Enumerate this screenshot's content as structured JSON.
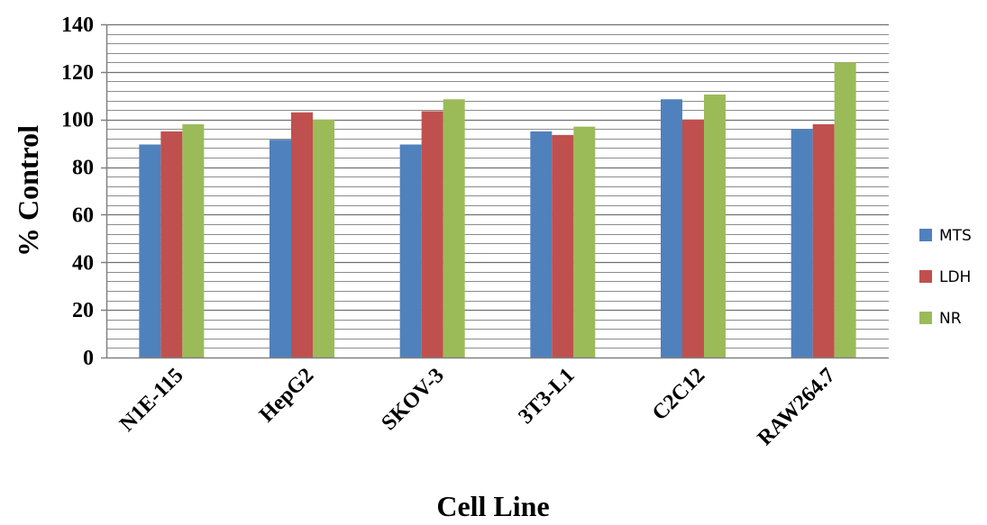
{
  "chart_data": {
    "type": "bar",
    "title": "",
    "xlabel": "Cell Line",
    "ylabel": "% Control",
    "ylim": [
      0,
      140
    ],
    "y_ticks": [
      0,
      20,
      40,
      60,
      80,
      100,
      120,
      140
    ],
    "y_minor_step": 4,
    "grid": true,
    "legend_position": "right",
    "categories": [
      "N1E-115",
      "HepG2",
      "SKOV-3",
      "3T3-L1",
      "C2C12",
      "RAW264.7"
    ],
    "series": [
      {
        "name": "MTS",
        "color": "#4f81bd",
        "values": [
          89.5,
          91.5,
          89.5,
          95,
          108.5,
          96
        ]
      },
      {
        "name": "LDH",
        "color": "#c0504d",
        "values": [
          95,
          103,
          103.5,
          93.5,
          100,
          98
        ]
      },
      {
        "name": "NR",
        "color": "#9bbb59",
        "values": [
          98,
          100,
          108.5,
          97,
          110.5,
          124
        ]
      }
    ]
  }
}
